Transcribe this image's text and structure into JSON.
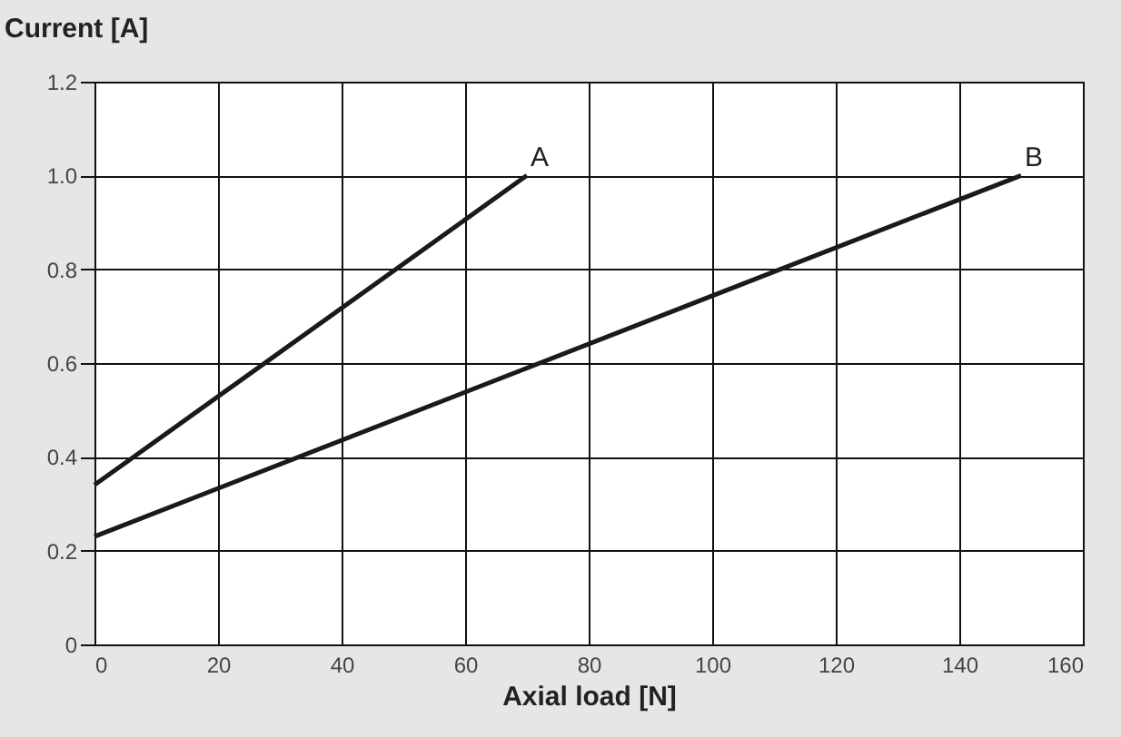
{
  "chart_data": {
    "type": "line",
    "ylabel": "Current [A]",
    "xlabel": "Axial load [N]",
    "series": [
      {
        "name": "A",
        "color": "#1a1a1a",
        "x": [
          0,
          70
        ],
        "values": [
          0.34,
          1.0
        ]
      },
      {
        "name": "B",
        "color": "#1a1a1a",
        "x": [
          0,
          150
        ],
        "values": [
          0.23,
          1.0
        ]
      }
    ],
    "xlim": [
      0,
      160
    ],
    "xticks": [
      0,
      20,
      40,
      60,
      80,
      100,
      120,
      140,
      160
    ],
    "ylim": [
      0,
      1.2
    ],
    "yticks": [
      0,
      0.2,
      0.4,
      0.6,
      0.8,
      {
        "value": 1,
        "label": "1.0"
      },
      1.2
    ],
    "grid": true,
    "legend": false,
    "marker": "none",
    "line_style": "solid"
  }
}
